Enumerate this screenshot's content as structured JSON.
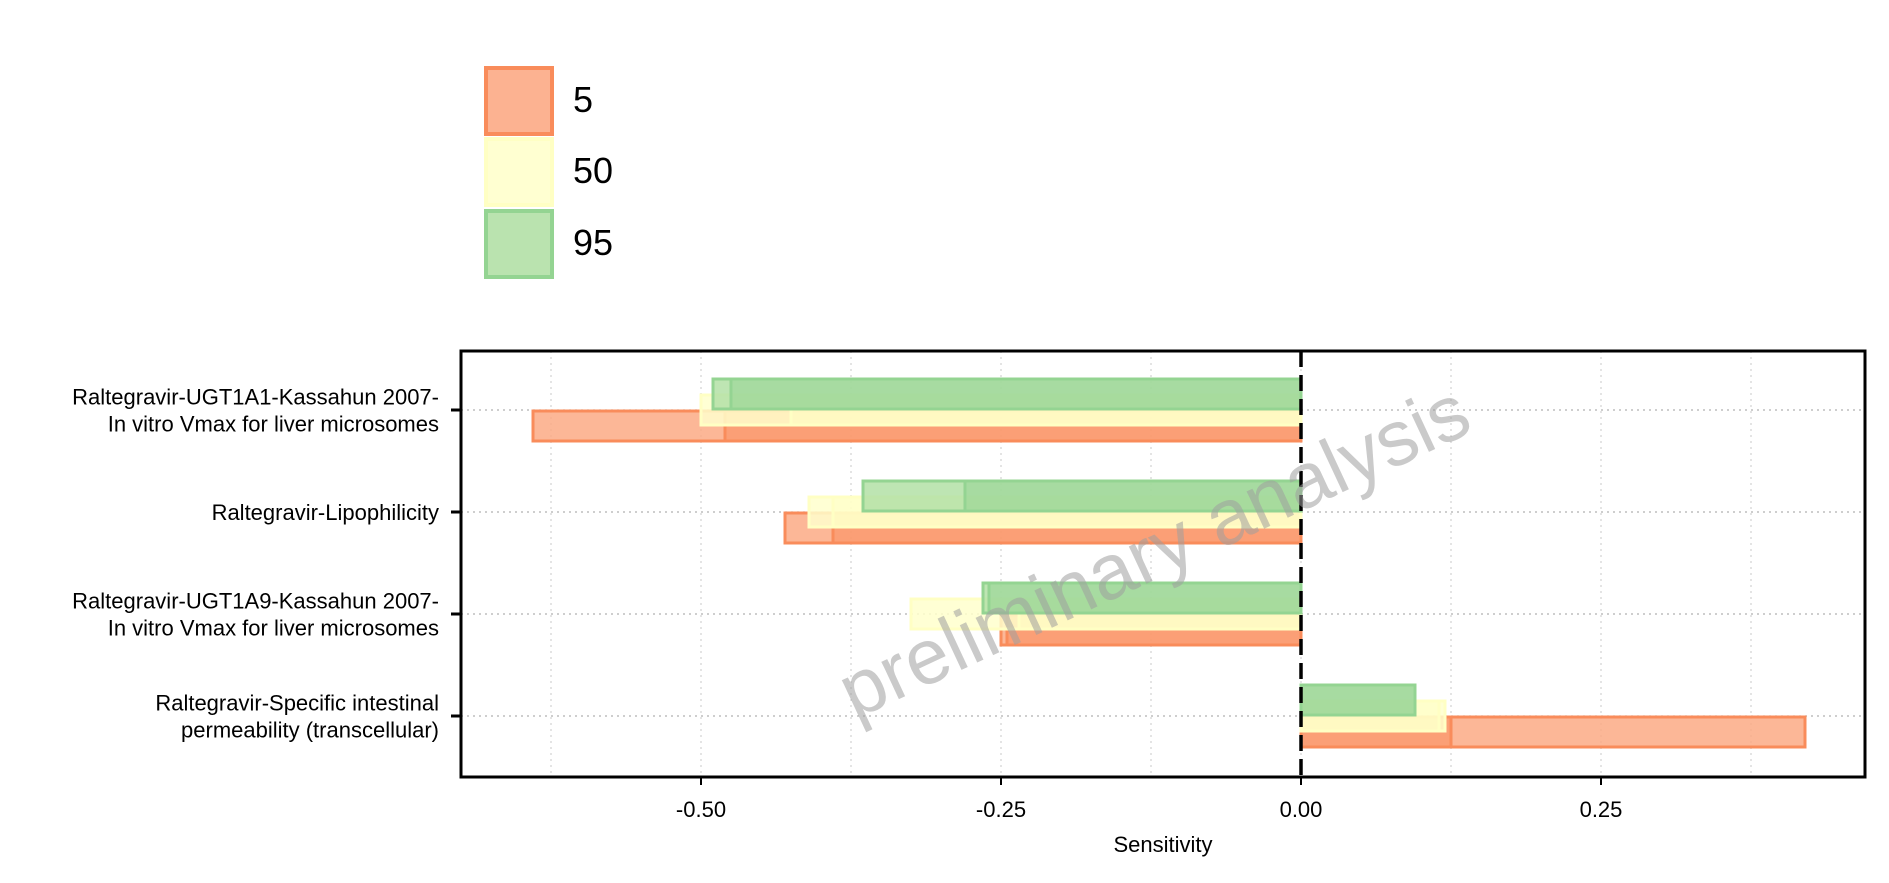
{
  "chart_data": {
    "type": "bar",
    "orientation": "horizontal",
    "xlabel": "Sensitivity",
    "ylabel": "",
    "xlim": [
      -0.7,
      0.47
    ],
    "x_ticks": [
      -0.5,
      -0.25,
      0.0,
      0.25
    ],
    "x_tick_labels": [
      "-0.50",
      "-0.25",
      "0.00",
      "0.25"
    ],
    "grid": true,
    "legend_position": "top-left",
    "watermark": "preliminary analysis",
    "categories": [
      [
        "Raltegravir-UGT1A1-Kassahun 2007-",
        "In vitro Vmax for liver microsomes"
      ],
      [
        "Raltegravir-Lipophilicity"
      ],
      [
        "Raltegravir-UGT1A9-Kassahun 2007-",
        "In vitro Vmax for liver microsomes"
      ],
      [
        "Raltegravir-Specific intestinal",
        "permeability (transcellular)"
      ]
    ],
    "series": [
      {
        "name": "5",
        "color": "#F98C5B",
        "fill": "#FCAA85",
        "values": [
          -0.64,
          -0.43,
          -0.25,
          0.42
        ],
        "inner_values": [
          -0.48,
          -0.39,
          -0.245,
          0.125
        ]
      },
      {
        "name": "50",
        "color": "#FFFFC4",
        "fill": "#FFFFCC",
        "values": [
          -0.5,
          -0.41,
          -0.325,
          0.12
        ],
        "inner_values": [
          -0.425,
          -0.39,
          -0.235,
          0.115
        ]
      },
      {
        "name": "95",
        "color": "#94D492",
        "fill": "#B3E0A6",
        "values": [
          -0.49,
          -0.365,
          -0.265,
          0.095
        ],
        "inner_values": [
          -0.475,
          -0.28,
          -0.26,
          0.095
        ]
      }
    ]
  }
}
